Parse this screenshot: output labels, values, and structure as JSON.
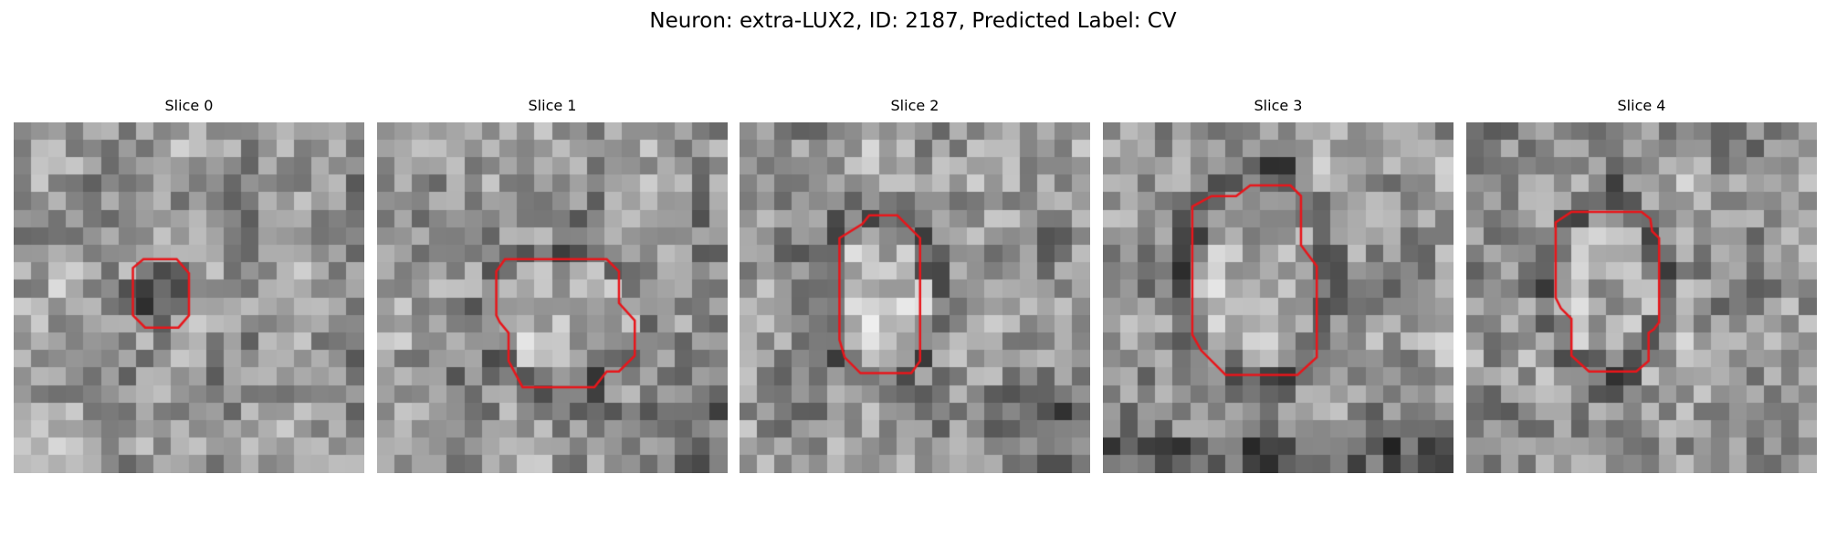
{
  "figure": {
    "suptitle": "Neuron: extra-LUX2, ID: 2187, Predicted Label: CV"
  },
  "panels": [
    {
      "title": "Slice 0",
      "seed": 11,
      "blob_brightness": "dark"
    },
    {
      "title": "Slice 1",
      "seed": 23,
      "blob_brightness": "bright"
    },
    {
      "title": "Slice 2",
      "seed": 37,
      "blob_brightness": "bright"
    },
    {
      "title": "Slice 3",
      "seed": 41,
      "blob_brightness": "bright"
    },
    {
      "title": "Slice 4",
      "seed": 53,
      "blob_brightness": "bright"
    }
  ],
  "colors": {
    "contour": "#e8161b",
    "background": "#ffffff"
  },
  "image_style": "grayscale pixelated microscopy crop",
  "contour_style": "red outline around segmented vesicle"
}
